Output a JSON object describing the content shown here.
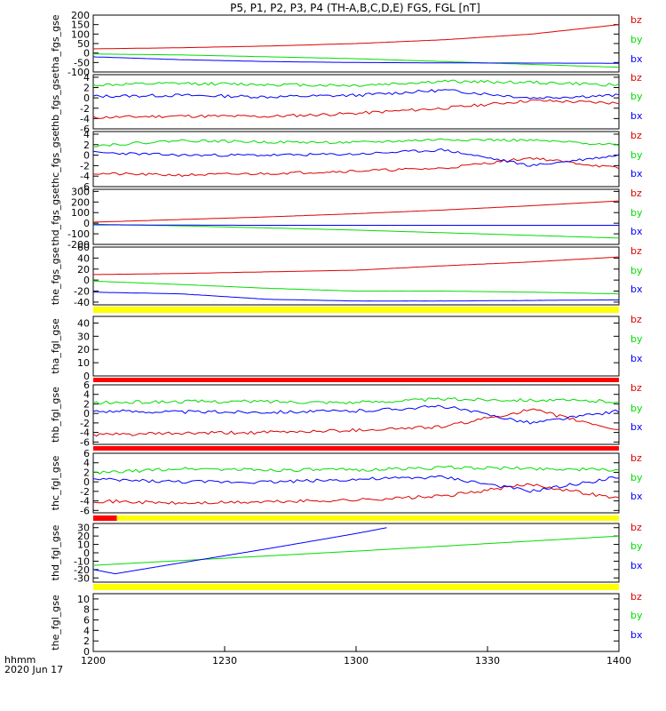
{
  "title": "P5, P1, P2, P3, P4 (TH-A,B,C,D,E) FGS, FGL [nT]",
  "time_label": "hhmm",
  "date_label": "2020 Jun 17",
  "legend": [
    "bz",
    "by",
    "bx"
  ],
  "colors": {
    "bx": "#0000ff",
    "by": "#00dd00",
    "bz": "#dd0000",
    "bar_yellow": "#ffff00",
    "bar_red": "#ff0000"
  },
  "x_ticks": [
    "1200",
    "1230",
    "1300",
    "1330",
    "1400"
  ],
  "chart_data": [
    {
      "type": "line",
      "ylabel": "tha_fgs_gse",
      "yticks": [
        "200",
        "150",
        "100",
        "50",
        "0",
        "-50",
        "-100"
      ],
      "ylim": [
        -100,
        200
      ],
      "x": [
        "12:00",
        "12:20",
        "12:40",
        "13:00",
        "13:20",
        "13:40",
        "14:00"
      ],
      "series": [
        {
          "name": "bz",
          "values": [
            22,
            28,
            37,
            50,
            70,
            100,
            150
          ]
        },
        {
          "name": "by",
          "values": [
            -5,
            -10,
            -20,
            -30,
            -45,
            -60,
            -75
          ]
        },
        {
          "name": "bx",
          "values": [
            -20,
            -35,
            -45,
            -50,
            -52,
            -53,
            -54
          ]
        }
      ],
      "bar": null
    },
    {
      "type": "line",
      "ylabel": "thb_fgs_gse",
      "yticks": [
        "4",
        "2",
        "0",
        "-2",
        "-4",
        "-6"
      ],
      "ylim": [
        -6,
        4.5
      ],
      "x": [
        "12:00",
        "12:20",
        "12:40",
        "13:00",
        "13:20",
        "13:40",
        "14:00"
      ],
      "series": [
        {
          "name": "bz",
          "values": [
            -3.8,
            -3.5,
            -3.6,
            -3.0,
            -2.0,
            -0.5,
            -1.0
          ]
        },
        {
          "name": "by",
          "values": [
            2.5,
            2.8,
            2.6,
            2.4,
            3.2,
            3.0,
            2.5
          ]
        },
        {
          "name": "bx",
          "values": [
            0.3,
            0.5,
            0.2,
            0.5,
            1.5,
            0.0,
            0.5
          ]
        }
      ],
      "bar": null
    },
    {
      "type": "line",
      "ylabel": "thc_fgs_gse",
      "yticks": [
        "4",
        "2",
        "0",
        "-2",
        "-4",
        "-6"
      ],
      "ylim": [
        -6,
        4.5
      ],
      "x": [
        "12:00",
        "12:20",
        "12:40",
        "13:00",
        "13:20",
        "13:40",
        "14:00"
      ],
      "series": [
        {
          "name": "bz",
          "values": [
            -3.5,
            -3.8,
            -3.5,
            -3.0,
            -2.5,
            -0.5,
            -2.5
          ]
        },
        {
          "name": "by",
          "values": [
            1.8,
            2.8,
            2.5,
            2.4,
            3.0,
            2.8,
            2.0
          ]
        },
        {
          "name": "bx",
          "values": [
            0.5,
            0.0,
            0.0,
            0.2,
            1.0,
            -2.0,
            0.0
          ]
        }
      ],
      "bar": null
    },
    {
      "type": "line",
      "ylabel": "thd_fgs_gse",
      "yticks": [
        "300",
        "200",
        "100",
        "0",
        "-100",
        "-200"
      ],
      "ylim": [
        -200,
        320
      ],
      "x": [
        "12:00",
        "12:20",
        "12:40",
        "13:00",
        "13:20",
        "13:40",
        "14:00"
      ],
      "series": [
        {
          "name": "bz",
          "values": [
            10,
            35,
            60,
            90,
            125,
            165,
            210
          ]
        },
        {
          "name": "by",
          "values": [
            -10,
            -25,
            -45,
            -65,
            -90,
            -115,
            -140
          ]
        },
        {
          "name": "bx",
          "values": [
            -15,
            -18,
            -20,
            -20,
            -20,
            -20,
            -20
          ]
        }
      ],
      "bar": null
    },
    {
      "type": "line",
      "ylabel": "the_fgs_gse",
      "yticks": [
        "60",
        "40",
        "20",
        "0",
        "-20",
        "-40"
      ],
      "ylim": [
        -45,
        60
      ],
      "x": [
        "12:00",
        "12:20",
        "12:40",
        "13:00",
        "13:20",
        "13:40",
        "14:00"
      ],
      "series": [
        {
          "name": "bz",
          "values": [
            10,
            12,
            15,
            18,
            26,
            33,
            42
          ]
        },
        {
          "name": "by",
          "values": [
            -2,
            -8,
            -15,
            -20,
            -20,
            -22,
            -25
          ]
        },
        {
          "name": "bx",
          "values": [
            -22,
            -25,
            -35,
            -38,
            -38,
            -37,
            -36
          ]
        }
      ],
      "bar": {
        "color": "yellow",
        "from": 0,
        "to": 1
      }
    },
    {
      "type": "line",
      "ylabel": "tha_fgl_gse",
      "yticks": [
        "40",
        "30",
        "20",
        "10",
        "0"
      ],
      "ylim": [
        0,
        45
      ],
      "x": [],
      "series": [],
      "bar": {
        "color": "red",
        "from": 0,
        "to": 1
      }
    },
    {
      "type": "line",
      "ylabel": "thb_fgl_gse",
      "yticks": [
        "6",
        "4",
        "2",
        "0",
        "-2",
        "-4",
        "-6"
      ],
      "ylim": [
        -6.5,
        6
      ],
      "x": [
        "12:00",
        "12:20",
        "12:40",
        "13:00",
        "13:20",
        "13:40",
        "14:00"
      ],
      "series": [
        {
          "name": "bz",
          "values": [
            -4.5,
            -4.2,
            -4.0,
            -3.5,
            -2.8,
            0.8,
            -3.5
          ]
        },
        {
          "name": "by",
          "values": [
            2.2,
            2.5,
            2.5,
            2.3,
            3.0,
            2.8,
            2.5
          ]
        },
        {
          "name": "bx",
          "values": [
            0.5,
            0.3,
            0.3,
            0.5,
            1.5,
            -2.0,
            0.5
          ]
        }
      ],
      "bar": {
        "color": "red",
        "from": 0,
        "to": 1
      }
    },
    {
      "type": "line",
      "ylabel": "thc_fgl_gse",
      "yticks": [
        "6",
        "4",
        "2",
        "0",
        "-2",
        "-4",
        "-6"
      ],
      "ylim": [
        -6.5,
        6
      ],
      "x": [
        "12:00",
        "12:20",
        "12:40",
        "13:00",
        "13:20",
        "13:40",
        "14:00"
      ],
      "series": [
        {
          "name": "bz",
          "values": [
            -4.0,
            -4.5,
            -4.2,
            -3.8,
            -3.0,
            -0.5,
            -3.5
          ]
        },
        {
          "name": "by",
          "values": [
            1.8,
            2.8,
            2.5,
            2.5,
            3.0,
            2.8,
            2.5
          ]
        },
        {
          "name": "bx",
          "values": [
            0.5,
            0.0,
            0.0,
            0.5,
            1.0,
            -2.0,
            1.0
          ]
        }
      ],
      "bar": {
        "segments": [
          {
            "color": "red",
            "from": 0,
            "to": 0.045
          },
          {
            "color": "yellow",
            "from": 0.045,
            "to": 1
          }
        ]
      }
    },
    {
      "type": "line",
      "ylabel": "thd_fgl_gse",
      "yticks": [
        "30",
        "20",
        "10",
        "0",
        "-10",
        "-20",
        "-30"
      ],
      "ylim": [
        -35,
        35
      ],
      "x": [
        "12:00",
        "12:05",
        "12:20",
        "12:40",
        "13:00",
        "13:07"
      ],
      "series": [
        {
          "name": "by",
          "x": [
            "12:00",
            "13:00",
            "14:00"
          ],
          "values": [
            -15,
            2,
            20
          ]
        },
        {
          "name": "bx",
          "x": [
            "12:00",
            "12:05",
            "12:20",
            "12:40",
            "13:00",
            "13:07"
          ],
          "values": [
            -20,
            -25,
            -12,
            5,
            23,
            30
          ]
        }
      ],
      "bar": {
        "color": "yellow",
        "from": 0,
        "to": 1
      }
    },
    {
      "type": "line",
      "ylabel": "the_fgl_gse",
      "yticks": [
        "10",
        "8",
        "6",
        "4",
        "2",
        "0"
      ],
      "ylim": [
        0,
        11
      ],
      "x": [],
      "series": [],
      "bar": null
    }
  ]
}
